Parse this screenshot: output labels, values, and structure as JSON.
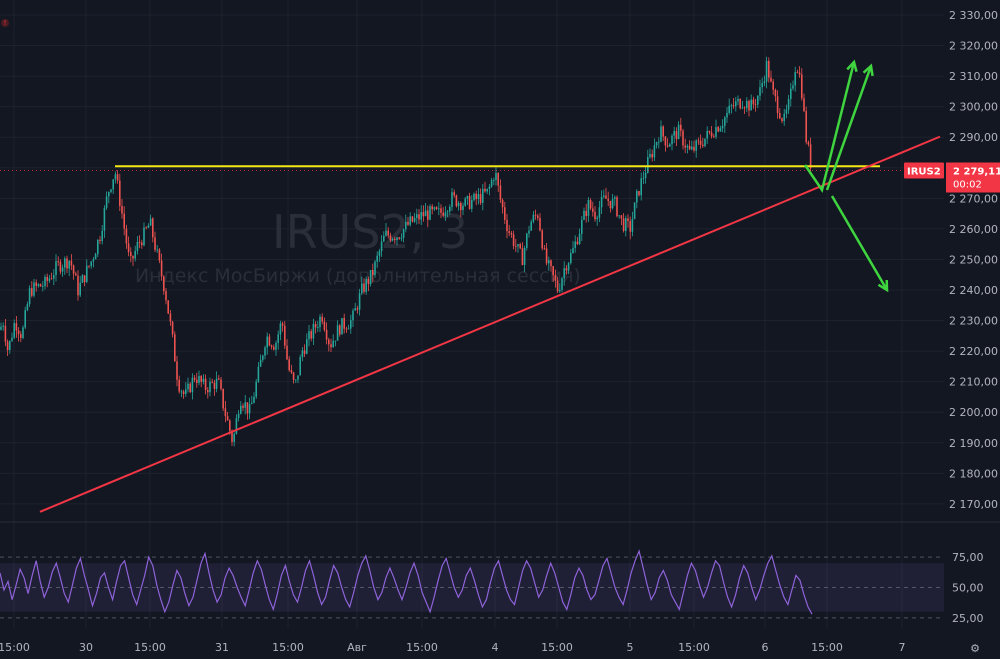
{
  "chart_data": {
    "type": "candlestick",
    "symbol": "IRUS2",
    "interval": "3",
    "description": "Индекс МосБиржи (дополнительная сессия)",
    "last_price": "2 279,11",
    "countdown": "00:02",
    "price_axis": {
      "range": [
        2165,
        2332
      ],
      "ticks": [
        "2 330,00",
        "2 320,00",
        "2 310,00",
        "2 300,00",
        "2 290,00",
        "2 280,00",
        "2 270,00",
        "2 260,00",
        "2 250,00",
        "2 240,00",
        "2 230,00",
        "2 220,00",
        "2 210,00",
        "2 200,00",
        "2 190,00",
        "2 180,00",
        "2 170,00"
      ],
      "tick_values": [
        2330,
        2320,
        2310,
        2300,
        2290,
        2280,
        2270,
        2260,
        2250,
        2240,
        2230,
        2220,
        2210,
        2200,
        2190,
        2180,
        2170
      ]
    },
    "time_axis": {
      "ticks": [
        "15:00",
        "30",
        "15:00",
        "31",
        "15:00",
        "Авг",
        "15:00",
        "4",
        "15:00",
        "5",
        "15:00",
        "6",
        "15:00",
        "7"
      ]
    },
    "price_path": [
      [
        0,
        2227
      ],
      [
        3,
        2230
      ],
      [
        8,
        2220
      ],
      [
        15,
        2230
      ],
      [
        22,
        2225
      ],
      [
        30,
        2240
      ],
      [
        45,
        2242
      ],
      [
        58,
        2248
      ],
      [
        70,
        2250
      ],
      [
        78,
        2240
      ],
      [
        92,
        2250
      ],
      [
        100,
        2258
      ],
      [
        108,
        2272
      ],
      [
        115,
        2279
      ],
      [
        122,
        2265
      ],
      [
        130,
        2248
      ],
      [
        138,
        2255
      ],
      [
        144,
        2258
      ],
      [
        150,
        2262
      ],
      [
        158,
        2250
      ],
      [
        165,
        2240
      ],
      [
        172,
        2225
      ],
      [
        178,
        2210
      ],
      [
        185,
        2205
      ],
      [
        195,
        2212
      ],
      [
        205,
        2208
      ],
      [
        218,
        2210
      ],
      [
        225,
        2200
      ],
      [
        233,
        2190
      ],
      [
        240,
        2205
      ],
      [
        250,
        2200
      ],
      [
        258,
        2212
      ],
      [
        266,
        2225
      ],
      [
        275,
        2222
      ],
      [
        282,
        2230
      ],
      [
        288,
        2215
      ],
      [
        295,
        2208
      ],
      [
        302,
        2220
      ],
      [
        312,
        2226
      ],
      [
        322,
        2232
      ],
      [
        330,
        2222
      ],
      [
        340,
        2228
      ],
      [
        352,
        2230
      ],
      [
        362,
        2240
      ],
      [
        372,
        2245
      ],
      [
        385,
        2258
      ],
      [
        398,
        2258
      ],
      [
        410,
        2262
      ],
      [
        425,
        2265
      ],
      [
        440,
        2265
      ],
      [
        452,
        2270
      ],
      [
        465,
        2268
      ],
      [
        478,
        2270
      ],
      [
        488,
        2272
      ],
      [
        495,
        2279
      ],
      [
        500,
        2270
      ],
      [
        508,
        2260
      ],
      [
        515,
        2255
      ],
      [
        522,
        2250
      ],
      [
        530,
        2262
      ],
      [
        538,
        2265
      ],
      [
        545,
        2250
      ],
      [
        552,
        2245
      ],
      [
        558,
        2240
      ],
      [
        565,
        2248
      ],
      [
        572,
        2252
      ],
      [
        580,
        2260
      ],
      [
        588,
        2268
      ],
      [
        595,
        2265
      ],
      [
        605,
        2270
      ],
      [
        615,
        2268
      ],
      [
        622,
        2262
      ],
      [
        630,
        2260
      ],
      [
        638,
        2272
      ],
      [
        645,
        2279
      ],
      [
        652,
        2285
      ],
      [
        660,
        2292
      ],
      [
        668,
        2288
      ],
      [
        678,
        2292
      ],
      [
        690,
        2285
      ],
      [
        700,
        2288
      ],
      [
        712,
        2292
      ],
      [
        722,
        2295
      ],
      [
        732,
        2300
      ],
      [
        742,
        2302
      ],
      [
        752,
        2300
      ],
      [
        760,
        2305
      ],
      [
        767,
        2314
      ],
      [
        772,
        2305
      ],
      [
        778,
        2300
      ],
      [
        784,
        2295
      ],
      [
        790,
        2302
      ],
      [
        796,
        2315
      ],
      [
        801,
        2308
      ],
      [
        806,
        2290
      ],
      [
        812,
        2279
      ]
    ],
    "horizontal_level": {
      "value": 2280.5,
      "color": "#f5e716"
    },
    "trend_line": {
      "points": [
        [
          40,
          2167.4
        ],
        [
          940,
          2290.2
        ]
      ],
      "color": "#f23645"
    },
    "rsi": {
      "levels": [
        "75,00",
        "50,00",
        "25,00"
      ],
      "level_values": [
        75,
        50,
        25
      ],
      "band": [
        30,
        70
      ],
      "color": "#8e63d9",
      "values": [
        62,
        48,
        55,
        40,
        52,
        65,
        58,
        45,
        60,
        72,
        55,
        42,
        50,
        63,
        70,
        58,
        45,
        38,
        52,
        66,
        74,
        60,
        48,
        35,
        45,
        58,
        62,
        50,
        40,
        55,
        68,
        72,
        58,
        44,
        36,
        48,
        60,
        75,
        68,
        52,
        40,
        30,
        38,
        52,
        64,
        58,
        45,
        35,
        42,
        56,
        70,
        78,
        62,
        48,
        38,
        44,
        58,
        66,
        60,
        50,
        42,
        35,
        48,
        62,
        72,
        65,
        52,
        40,
        32,
        45,
        60,
        68,
        55,
        44,
        38,
        50,
        64,
        72,
        60,
        46,
        36,
        42,
        56,
        68,
        62,
        50,
        40,
        34,
        46,
        60,
        70,
        76,
        64,
        50,
        40,
        46,
        58,
        66,
        58,
        48,
        40,
        50,
        62,
        70,
        60,
        46,
        38,
        30,
        42,
        56,
        68,
        74,
        62,
        50,
        42,
        48,
        60,
        66,
        56,
        44,
        34,
        40,
        54,
        66,
        72,
        60,
        48,
        40,
        36,
        50,
        64,
        72,
        66,
        54,
        42,
        48,
        60,
        70,
        62,
        50,
        38,
        32,
        44,
        58,
        66,
        60,
        48,
        40,
        44,
        56,
        68,
        74,
        62,
        50,
        42,
        36,
        48,
        62,
        72,
        80,
        66,
        52,
        40,
        46,
        58,
        64,
        56,
        44,
        38,
        32,
        46,
        60,
        70,
        64,
        52,
        42,
        50,
        62,
        72,
        68,
        54,
        42,
        34,
        44,
        58,
        68,
        62,
        50,
        40,
        48,
        60,
        70,
        76,
        64,
        52,
        42,
        36,
        48,
        60,
        56,
        44,
        34,
        28
      ]
    },
    "annotations": [
      {
        "type": "arrow",
        "color": "#3fd53f",
        "dir": "up"
      },
      {
        "type": "arrow",
        "color": "#3fd53f",
        "dir": "up"
      },
      {
        "type": "arrow",
        "color": "#3fd53f",
        "dir": "down"
      }
    ]
  },
  "colors": {
    "background": "#131722",
    "up": "#26a69a",
    "down": "#ef5350",
    "grid": "#1e222d",
    "price_tag": "#f23645",
    "arrow": "#3fd53f"
  },
  "icons": {
    "alert": "alert-icon",
    "settings": "settings-icon"
  }
}
